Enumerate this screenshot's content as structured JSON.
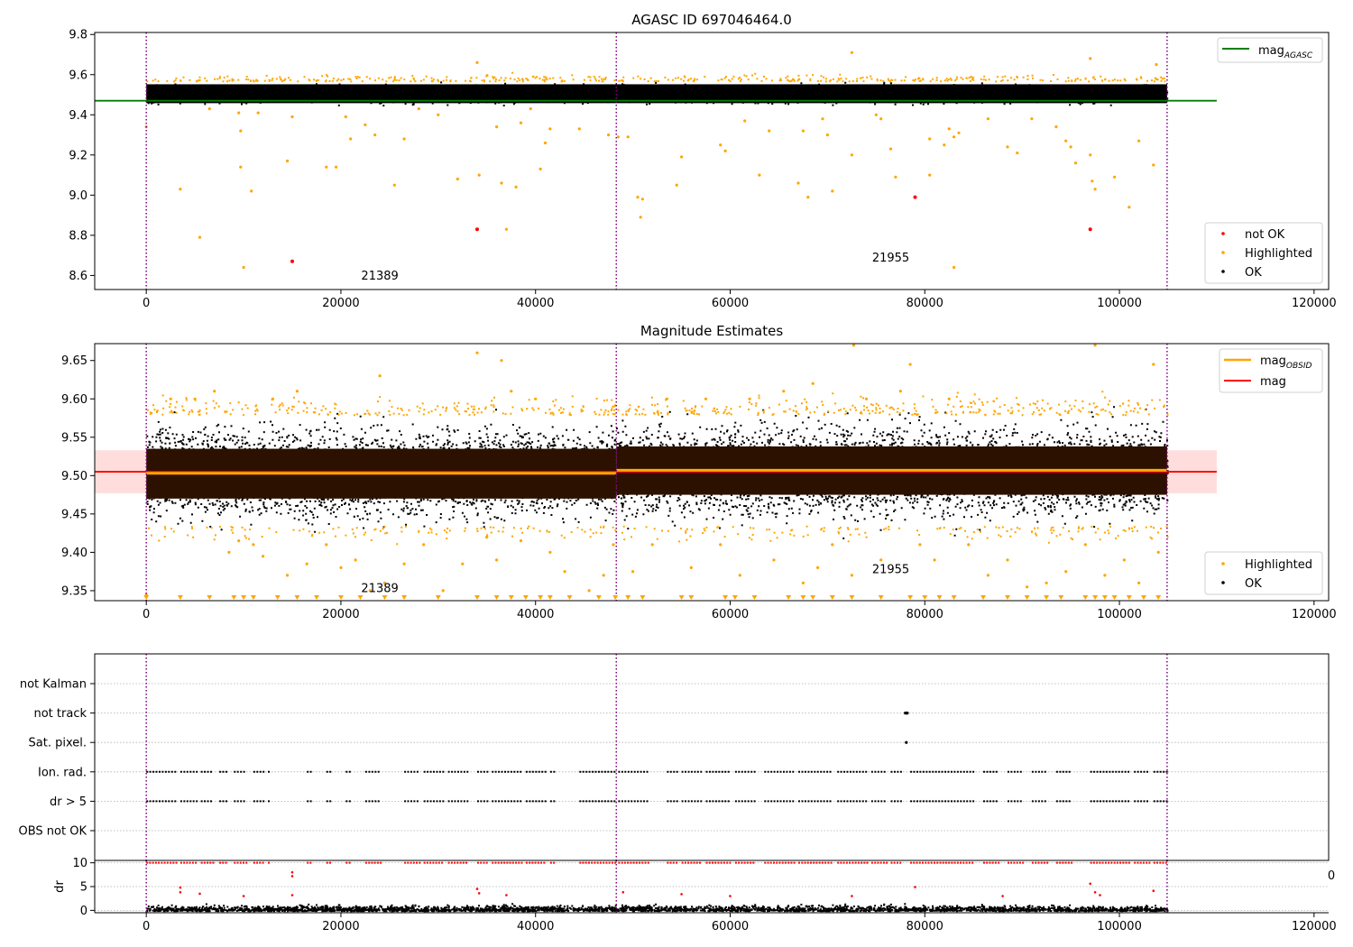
{
  "figure": {
    "title": "AGASC ID 697046464.0"
  },
  "colors": {
    "ok": "#000000",
    "highlighted": "#ffa500",
    "not_ok": "#ff0000",
    "agasc_line": "#008000",
    "mag_line": "#ff0000",
    "obsid_line": "#ffa500",
    "band": "#ffdddd",
    "obsid_sep": "#800080",
    "grid": "#b0b0b0"
  },
  "chart_data": [
    {
      "type": "scatter",
      "title": "",
      "xlim": [
        -5300,
        121500
      ],
      "ylim": [
        8.53,
        9.81
      ],
      "xticks": [
        0,
        20000,
        40000,
        60000,
        80000,
        100000,
        120000
      ],
      "yticks": [
        8.6,
        8.8,
        9.0,
        9.2,
        9.4,
        9.6,
        9.8
      ],
      "ok_band": {
        "x": [
          0,
          104900
        ],
        "y": [
          9.44,
          9.57
        ]
      },
      "obsid_boundaries": [
        0,
        48300,
        104900
      ],
      "obsid_labels": [
        {
          "text": "21389",
          "x": 24000,
          "y": 8.58
        },
        {
          "text": "21955",
          "x": 76500,
          "y": 8.67
        }
      ],
      "lines": [
        {
          "name": "mag_AGASC",
          "x": [
            -5300,
            110000
          ],
          "y": [
            9.47,
            9.47
          ]
        }
      ],
      "highlighted_points": [
        [
          0,
          9.34
        ],
        [
          3500,
          9.03
        ],
        [
          5500,
          8.79
        ],
        [
          6500,
          9.43
        ],
        [
          9500,
          9.41
        ],
        [
          9700,
          9.32
        ],
        [
          9700,
          9.14
        ],
        [
          10000,
          8.64
        ],
        [
          10800,
          9.02
        ],
        [
          11500,
          9.41
        ],
        [
          14500,
          9.17
        ],
        [
          15000,
          9.39
        ],
        [
          18500,
          9.14
        ],
        [
          19500,
          9.14
        ],
        [
          20500,
          9.39
        ],
        [
          21000,
          9.28
        ],
        [
          22500,
          9.35
        ],
        [
          23500,
          9.3
        ],
        [
          25500,
          9.05
        ],
        [
          26500,
          9.28
        ],
        [
          28000,
          9.43
        ],
        [
          30000,
          9.4
        ],
        [
          32000,
          9.08
        ],
        [
          34000,
          9.66
        ],
        [
          34200,
          9.1
        ],
        [
          36000,
          9.34
        ],
        [
          36500,
          9.06
        ],
        [
          37000,
          8.83
        ],
        [
          38000,
          9.04
        ],
        [
          38500,
          9.36
        ],
        [
          39500,
          9.43
        ],
        [
          40500,
          9.13
        ],
        [
          41000,
          9.26
        ],
        [
          41500,
          9.33
        ],
        [
          44500,
          9.33
        ],
        [
          47500,
          9.3
        ],
        [
          48500,
          9.29
        ],
        [
          49500,
          9.29
        ],
        [
          50500,
          8.99
        ],
        [
          51000,
          8.98
        ],
        [
          50800,
          8.89
        ],
        [
          54500,
          9.05
        ],
        [
          55000,
          9.19
        ],
        [
          59000,
          9.25
        ],
        [
          59500,
          9.22
        ],
        [
          61500,
          9.37
        ],
        [
          63000,
          9.1
        ],
        [
          64000,
          9.32
        ],
        [
          67000,
          9.06
        ],
        [
          67500,
          9.32
        ],
        [
          68000,
          8.99
        ],
        [
          69500,
          9.38
        ],
        [
          70000,
          9.3
        ],
        [
          70500,
          9.02
        ],
        [
          72500,
          9.2
        ],
        [
          72500,
          9.71
        ],
        [
          75000,
          9.4
        ],
        [
          75500,
          9.38
        ],
        [
          76500,
          9.23
        ],
        [
          77000,
          9.09
        ],
        [
          80500,
          9.28
        ],
        [
          80500,
          9.1
        ],
        [
          82000,
          9.25
        ],
        [
          82500,
          9.33
        ],
        [
          83000,
          9.29
        ],
        [
          83500,
          9.31
        ],
        [
          83000,
          8.64
        ],
        [
          86500,
          9.38
        ],
        [
          88500,
          9.24
        ],
        [
          89500,
          9.21
        ],
        [
          91000,
          9.38
        ],
        [
          93500,
          9.34
        ],
        [
          94500,
          9.27
        ],
        [
          95000,
          9.24
        ],
        [
          95500,
          9.16
        ],
        [
          97000,
          9.2
        ],
        [
          97200,
          9.07
        ],
        [
          97500,
          9.03
        ],
        [
          97000,
          9.68
        ],
        [
          99500,
          9.09
        ],
        [
          101000,
          8.94
        ],
        [
          102000,
          9.27
        ],
        [
          103500,
          9.15
        ],
        [
          103800,
          9.65
        ]
      ],
      "not_ok_points": [
        [
          15000,
          8.67
        ],
        [
          34000,
          8.83
        ],
        [
          79000,
          8.99
        ],
        [
          97000,
          8.83
        ]
      ],
      "legend_upper": {
        "placement": "upper right",
        "entries": [
          "mag",
          "AGASC"
        ]
      },
      "legend_lower": {
        "placement": "lower right",
        "entries": [
          "not OK",
          "Highlighted",
          "OK"
        ]
      }
    },
    {
      "type": "scatter",
      "title": "Magnitude Estimates",
      "xlim": [
        -5300,
        121500
      ],
      "ylim": [
        9.337,
        9.672
      ],
      "xticks": [
        0,
        20000,
        40000,
        60000,
        80000,
        100000,
        120000
      ],
      "yticks": [
        9.35,
        9.4,
        9.45,
        9.5,
        9.55,
        9.6,
        9.65
      ],
      "band": {
        "x": [
          -5300,
          110000
        ],
        "y": [
          9.477,
          9.533
        ]
      },
      "ok_scatter": [
        {
          "x": [
            0,
            48300
          ],
          "y_core": [
            9.47,
            9.535
          ],
          "y_spread": [
            9.43,
            9.58
          ]
        },
        {
          "x": [
            48300,
            104900
          ],
          "y_core": [
            9.475,
            9.538
          ],
          "y_spread": [
            9.43,
            9.585
          ]
        }
      ],
      "obsid_boundaries": [
        0,
        48300,
        104900
      ],
      "obsid_labels": [
        {
          "text": "21389",
          "x": 24000,
          "y": 9.348
        },
        {
          "text": "21955",
          "x": 76500,
          "y": 9.373
        }
      ],
      "lines": [
        {
          "name": "mag",
          "x": [
            -5300,
            110000
          ],
          "y": [
            9.505,
            9.505
          ]
        },
        {
          "name": "mag_OBSID",
          "segments": [
            {
              "x": [
                0,
                48300
              ],
              "y": 9.503
            },
            {
              "x": [
                48300,
                104900
              ],
              "y": 9.507
            }
          ]
        }
      ],
      "highlighted_points": [
        [
          0,
          9.345
        ],
        [
          2500,
          9.6
        ],
        [
          5000,
          9.6
        ],
        [
          7000,
          9.61
        ],
        [
          8500,
          9.4
        ],
        [
          9500,
          9.415
        ],
        [
          11000,
          9.41
        ],
        [
          12000,
          9.395
        ],
        [
          13000,
          9.6
        ],
        [
          14500,
          9.37
        ],
        [
          15500,
          9.61
        ],
        [
          16500,
          9.385
        ],
        [
          18500,
          9.41
        ],
        [
          20000,
          9.38
        ],
        [
          21500,
          9.39
        ],
        [
          23000,
          9.35
        ],
        [
          24000,
          9.63
        ],
        [
          24500,
          9.36
        ],
        [
          26500,
          9.385
        ],
        [
          28500,
          9.41
        ],
        [
          30500,
          9.35
        ],
        [
          32500,
          9.385
        ],
        [
          34000,
          9.66
        ],
        [
          35000,
          9.42
        ],
        [
          36000,
          9.39
        ],
        [
          36500,
          9.65
        ],
        [
          37500,
          9.61
        ],
        [
          38500,
          9.415
        ],
        [
          40000,
          9.6
        ],
        [
          41500,
          9.4
        ],
        [
          43000,
          9.375
        ],
        [
          45500,
          9.35
        ],
        [
          47000,
          9.37
        ],
        [
          48000,
          9.41
        ],
        [
          50000,
          9.375
        ],
        [
          52000,
          9.41
        ],
        [
          53500,
          9.6
        ],
        [
          56000,
          9.38
        ],
        [
          57500,
          9.6
        ],
        [
          59000,
          9.41
        ],
        [
          61000,
          9.37
        ],
        [
          62000,
          9.6
        ],
        [
          64500,
          9.39
        ],
        [
          65500,
          9.61
        ],
        [
          67500,
          9.36
        ],
        [
          68500,
          9.62
        ],
        [
          69000,
          9.38
        ],
        [
          70500,
          9.41
        ],
        [
          72500,
          9.37
        ],
        [
          72700,
          9.67
        ],
        [
          74000,
          9.6
        ],
        [
          75500,
          9.39
        ],
        [
          77500,
          9.61
        ],
        [
          78500,
          9.645
        ],
        [
          79500,
          9.41
        ],
        [
          81000,
          9.39
        ],
        [
          82500,
          9.6
        ],
        [
          84500,
          9.41
        ],
        [
          86500,
          9.37
        ],
        [
          88500,
          9.39
        ],
        [
          90500,
          9.355
        ],
        [
          92500,
          9.36
        ],
        [
          94500,
          9.375
        ],
        [
          96500,
          9.41
        ],
        [
          97500,
          9.67
        ],
        [
          98500,
          9.37
        ],
        [
          100500,
          9.39
        ],
        [
          102000,
          9.36
        ],
        [
          103500,
          9.645
        ],
        [
          104000,
          9.4
        ]
      ],
      "clipped_low_x": [
        0,
        3500,
        6500,
        9000,
        10000,
        11000,
        13500,
        15500,
        17500,
        20000,
        22000,
        24500,
        26500,
        30000,
        34000,
        36000,
        37500,
        39000,
        40500,
        41500,
        43500,
        46500,
        48200,
        49500,
        51000,
        55000,
        56000,
        59500,
        60500,
        62500,
        66000,
        67500,
        68500,
        70500,
        72500,
        75500,
        78500,
        80000,
        81500,
        83000,
        86000,
        88500,
        90500,
        92500,
        94000,
        96500,
        97500,
        98500,
        99500,
        101000,
        102500,
        104000
      ],
      "legend_upper": {
        "placement": "upper right",
        "entries": [
          "mag",
          "OBSID",
          "mag"
        ]
      },
      "legend_lower": {
        "placement": "lower right",
        "entries": [
          "Highlighted",
          "OK"
        ]
      }
    },
    {
      "type": "scatter",
      "title": "",
      "xlim": [
        -5300,
        121500
      ],
      "categories": [
        "not Kalman",
        "not track",
        "Sat. pixel.",
        "Ion. rad.",
        "dr > 5",
        "OBS not OK"
      ],
      "flag_points": [
        {
          "flag": "not track",
          "x": [
            78000,
            78100,
            78200
          ]
        },
        {
          "flag": "Sat. pixel.",
          "x": [
            78100
          ]
        }
      ],
      "flag_ranges": [
        [
          0,
          3000
        ],
        [
          3500,
          5200
        ],
        [
          5600,
          6800
        ],
        [
          7500,
          8200
        ],
        [
          9000,
          10200
        ],
        [
          11000,
          12000
        ],
        [
          12500,
          12600
        ],
        [
          16500,
          17000
        ],
        [
          18500,
          19000
        ],
        [
          20500,
          21000
        ],
        [
          22500,
          24000
        ],
        [
          26500,
          28000
        ],
        [
          28500,
          30500
        ],
        [
          31000,
          33000
        ],
        [
          34000,
          35000
        ],
        [
          35500,
          38500
        ],
        [
          39000,
          41000
        ],
        [
          41500,
          42000
        ],
        [
          44500,
          48300
        ],
        [
          48500,
          51500
        ],
        [
          53500,
          54500
        ],
        [
          55000,
          57000
        ],
        [
          57500,
          60000
        ],
        [
          60500,
          62500
        ],
        [
          63500,
          66500
        ],
        [
          67000,
          70500
        ],
        [
          71000,
          74000
        ],
        [
          74500,
          76000
        ],
        [
          76500,
          77500
        ],
        [
          78500,
          85000
        ],
        [
          86000,
          87500
        ],
        [
          88500,
          90000
        ],
        [
          91000,
          92500
        ],
        [
          93500,
          95000
        ],
        [
          97000,
          101000
        ],
        [
          101500,
          103000
        ],
        [
          103500,
          104900
        ]
      ],
      "dr_subplot": {
        "ylabel": "dr",
        "ylim": [
          -0.5,
          10.5
        ],
        "yticks": [
          0,
          5,
          10
        ],
        "x_tail_label": "0",
        "ok_spread": [
          0,
          1.6
        ],
        "high_points": [
          [
            3500,
            4.8
          ],
          [
            3500,
            3.8
          ],
          [
            5500,
            3.5
          ],
          [
            15000,
            8.0
          ],
          [
            15000,
            7.2
          ],
          [
            15000,
            3.2
          ],
          [
            10000,
            3.0
          ],
          [
            34000,
            4.5
          ],
          [
            34200,
            3.6
          ],
          [
            37000,
            3.2
          ],
          [
            49000,
            3.8
          ],
          [
            55000,
            3.4
          ],
          [
            60000,
            3.0
          ],
          [
            72500,
            3.0
          ],
          [
            79000,
            4.9
          ],
          [
            88000,
            3.0
          ],
          [
            97000,
            5.6
          ],
          [
            97500,
            3.8
          ],
          [
            98000,
            3.2
          ],
          [
            103500,
            4.1
          ]
        ]
      }
    }
  ]
}
